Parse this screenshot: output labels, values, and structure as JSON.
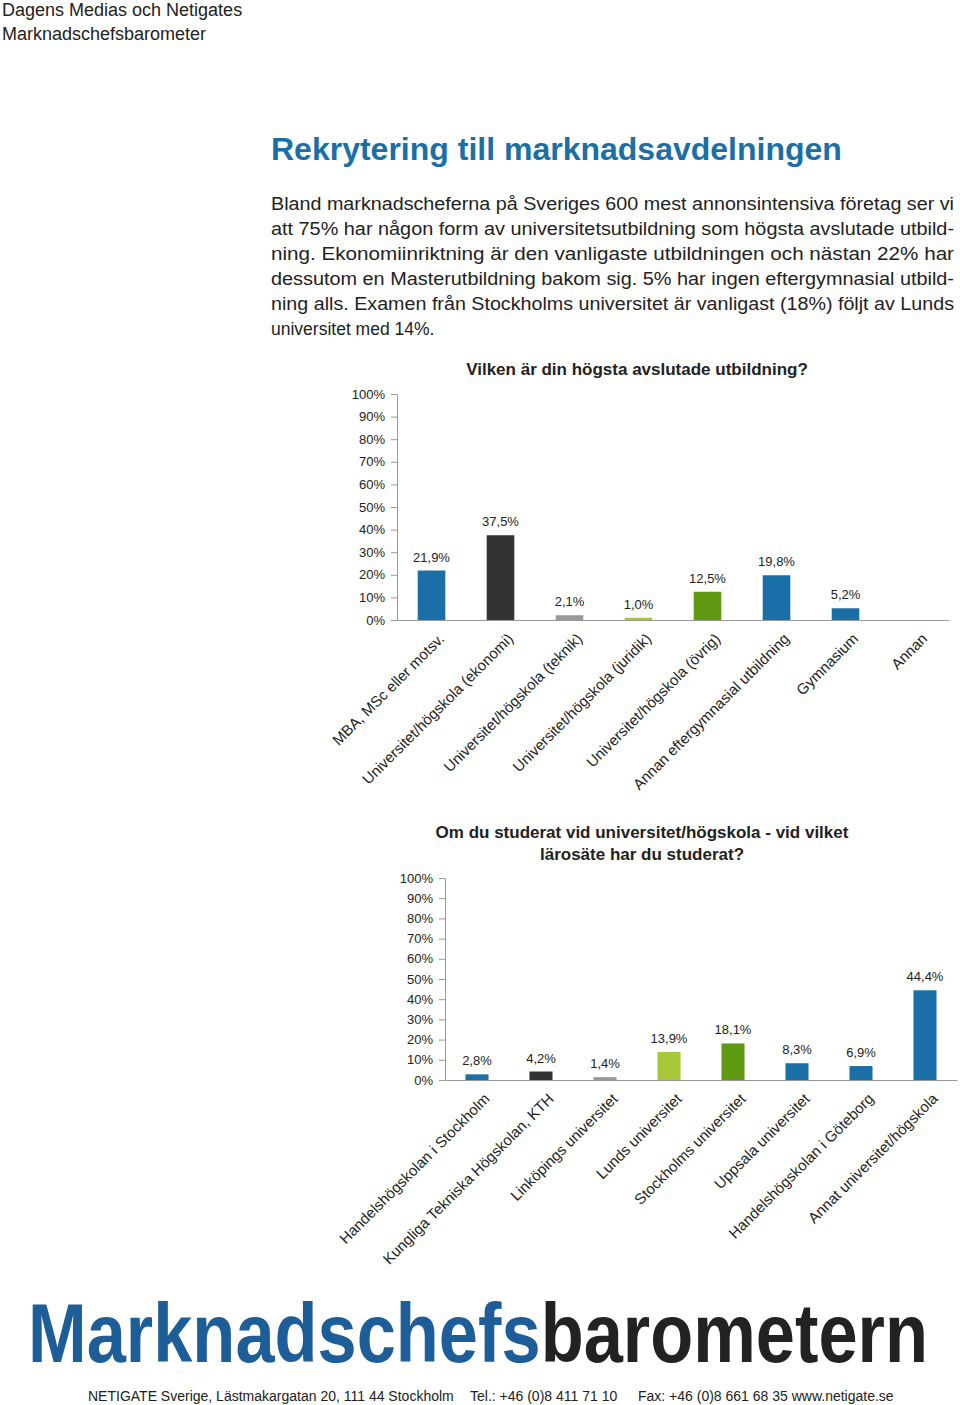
{
  "header": [
    "Dagens Medias och Netigates",
    "Marknadschefsbarometer"
  ],
  "title": "Rekrytering till marknadsavdelningen",
  "body": [
    "Bland marknadscheferna på Sveriges 600 mest annonsintensiva företag ser vi",
    "att 75% har någon form av universitetsutbildning som högsta avslutade utbild-",
    "ning. Ekonomiinriktning är den vanligaste utbildningen och nästan 22% har",
    "dessutom en Masterutbildning bakom sig. 5% har ingen eftergymnasial utbild-",
    "ning alls. Examen från Stockholms universitet är vanligast (18%) följt av Lunds",
    "universitet med 14%."
  ],
  "chart_data": [
    {
      "type": "bar",
      "title": [
        "Vilken är din högsta avslutade utbildning?"
      ],
      "categories": [
        "MBA, MSc eller motsv.",
        "Universitet/högskola (ekonomi)",
        "Universitet/högskola (teknik)",
        "Universitet/högskola (juridik)",
        "Universitet/högskola (övrig)",
        "Annan eftergymnasial utbildning",
        "Gymnasium",
        "Annan"
      ],
      "values": [
        21.9,
        37.5,
        2.1,
        1.0,
        12.5,
        19.8,
        5.2,
        0
      ],
      "value_labels": [
        "21,9%",
        "37,5%",
        "2,1%",
        "1,0%",
        "12,5%",
        "19,8%",
        "5,2%",
        null
      ],
      "colors": [
        "#1a6fa6",
        "#333333",
        "#999999",
        "#a8c83a",
        "#5f9a12",
        "#1a6fa6",
        "#1a6fa6",
        "#1a6fa6"
      ],
      "ylim": [
        0,
        100
      ],
      "yticks": [
        {
          "value": 0,
          "label": "0%"
        },
        {
          "value": 10,
          "label": "10%"
        },
        {
          "value": 20,
          "label": "20%"
        },
        {
          "value": 30,
          "label": "30%"
        },
        {
          "value": 40,
          "label": "40%"
        },
        {
          "value": 50,
          "label": "50%"
        },
        {
          "value": 60,
          "label": "60%"
        },
        {
          "value": 70,
          "label": "70%"
        },
        {
          "value": 80,
          "label": "80%"
        },
        {
          "value": 90,
          "label": "90%"
        },
        {
          "value": 100,
          "label": "100%"
        }
      ],
      "grid": false,
      "data_labels": true
    },
    {
      "type": "bar",
      "title": [
        "Om du studerat vid universitet/högskola - vid vilket",
        "lärosäte har du studerat?"
      ],
      "categories": [
        "Handelshögskolan i Stockholm",
        "Kungliga Tekniska Högskolan, KTH",
        "Linköpings universitet",
        "Lunds universitet",
        "Stockholms universitet",
        "Uppsala universitet",
        "Handelshögskolan i Göteborg",
        "Annat universitet/högskola"
      ],
      "values": [
        2.8,
        4.2,
        1.4,
        13.9,
        18.1,
        8.3,
        6.9,
        44.4
      ],
      "value_labels": [
        "2,8%",
        "4,2%",
        "1,4%",
        "13,9%",
        "18,1%",
        "8,3%",
        "6,9%",
        "44,4%"
      ],
      "colors": [
        "#1a6fa6",
        "#333333",
        "#999999",
        "#a8c83a",
        "#5f9a12",
        "#1a6fa6",
        "#1a6fa6",
        "#1a6fa6"
      ],
      "ylim": [
        0,
        100
      ],
      "yticks": [
        {
          "value": 0,
          "label": "0%"
        },
        {
          "value": 10,
          "label": "10%"
        },
        {
          "value": 20,
          "label": "20%"
        },
        {
          "value": 30,
          "label": "30%"
        },
        {
          "value": 40,
          "label": "40%"
        },
        {
          "value": 50,
          "label": "50%"
        },
        {
          "value": 60,
          "label": "60%"
        },
        {
          "value": 70,
          "label": "70%"
        },
        {
          "value": 80,
          "label": "80%"
        },
        {
          "value": 90,
          "label": "90%"
        },
        {
          "value": 100,
          "label": "100%"
        }
      ],
      "grid": false,
      "data_labels": true
    }
  ],
  "logo": [
    "Marknadschefs",
    "barometern"
  ],
  "footer": [
    "NETIGATE Sverige, Lästmakargatan 20, 111 44 Stockholm",
    "Tel.: +46 (0)8 411 71 10",
    "Fax: +46 (0)8 661 68 35 www.netigate.se"
  ]
}
